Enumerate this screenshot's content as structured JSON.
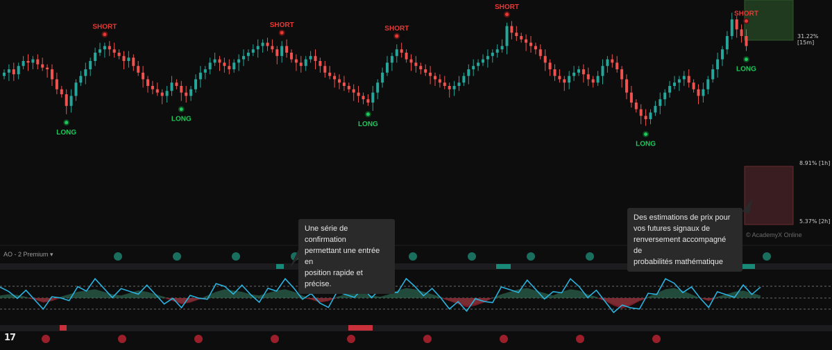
{
  "indicator": {
    "title": "AO - 2 Premium"
  },
  "watermark": "© AcademyX Online",
  "callouts": {
    "confirmation": [
      "Une série de confirmation",
      "permettant une entrée en",
      "position rapide et précise."
    ],
    "estimates": [
      "Des estimations de prix pour",
      "vos futures signaux de",
      "renversement accompagné de",
      "probabilités mathématique"
    ]
  },
  "estimates": [
    {
      "label": "31.22% [15m]",
      "color": "#1f3a1e"
    },
    {
      "label": "8.91% [1h]",
      "color": ""
    },
    {
      "label": "5.37% [2h]",
      "color": "#3a1d20"
    }
  ],
  "colors": {
    "up": "#26a69a",
    "down": "#ef5350",
    "long": "#1ec85a",
    "short": "#e53935",
    "wave": "#2ab3e0",
    "bg": "#0e0d0d"
  },
  "chart_data": {
    "type": "candlestick",
    "signals": [
      {
        "type": "SHORT",
        "candle": 21
      },
      {
        "type": "SHORT",
        "candle": 58
      },
      {
        "type": "SHORT",
        "candle": 82
      },
      {
        "type": "SHORT",
        "candle": 105
      },
      {
        "type": "SHORT",
        "candle": 170
      },
      {
        "type": "LONG",
        "candle": 13
      },
      {
        "type": "LONG",
        "candle": 37
      },
      {
        "type": "LONG",
        "candle": 76
      },
      {
        "type": "LONG",
        "candle": 134
      },
      {
        "type": "LONG",
        "candle": 155
      }
    ],
    "close": [
      48,
      50,
      47,
      52,
      55,
      54,
      56,
      53,
      51,
      50,
      44,
      38,
      35,
      28,
      34,
      42,
      46,
      50,
      55,
      60,
      62,
      64,
      62,
      60,
      58,
      55,
      57,
      52,
      48,
      44,
      40,
      38,
      36,
      34,
      37,
      42,
      40,
      36,
      34,
      38,
      44,
      48,
      50,
      54,
      56,
      54,
      52,
      50,
      54,
      56,
      58,
      60,
      62,
      64,
      66,
      64,
      62,
      58,
      64,
      60,
      56,
      54,
      52,
      56,
      58,
      55,
      52,
      48,
      46,
      44,
      42,
      40,
      38,
      36,
      34,
      32,
      30,
      36,
      42,
      48,
      54,
      58,
      62,
      60,
      56,
      54,
      52,
      50,
      48,
      46,
      44,
      42,
      40,
      38,
      40,
      42,
      46,
      50,
      52,
      54,
      56,
      58,
      60,
      62,
      64,
      76,
      72,
      70,
      68,
      66,
      64,
      62,
      58,
      54,
      50,
      46,
      44,
      42,
      46,
      48,
      50,
      47,
      44,
      42,
      46,
      52,
      56,
      54,
      50,
      44,
      36,
      30,
      26,
      22,
      20,
      24,
      28,
      32,
      36,
      40,
      42,
      44,
      46,
      42,
      38,
      34,
      38,
      44,
      50,
      56,
      62,
      70,
      80,
      74,
      70,
      64
    ],
    "indicator_wave": [
      0.2,
      0.3,
      0.25,
      0.1,
      -0.1,
      -0.3,
      -0.2,
      0.1,
      0.3,
      0.5,
      0.6,
      0.7,
      0.5,
      0.3,
      0.2,
      0.4,
      0.6,
      0.5,
      0.3,
      0.1,
      -0.2,
      -0.4,
      -0.3,
      -0.1,
      0.2,
      0.5,
      0.7,
      0.6,
      0.5,
      0.3,
      0.2,
      0.4,
      0.6,
      0.7,
      0.5,
      0.2,
      -0.1,
      -0.3,
      -0.2,
      0.1,
      0.3,
      0.5,
      0.4,
      0.2,
      0.1,
      0.3,
      0.6,
      0.8,
      0.7,
      0.5,
      0.3,
      0.1,
      -0.2,
      -0.4,
      -0.6,
      -0.5,
      -0.3,
      0.0,
      0.3,
      0.5,
      0.7,
      0.8,
      0.6,
      0.4,
      0.2,
      0.5,
      0.7,
      0.6,
      0.3,
      0.1,
      -0.2,
      -0.5,
      -0.7,
      -0.5,
      -0.2,
      0.1,
      0.4,
      0.7,
      0.8,
      0.6,
      0.3,
      0.0,
      -0.2,
      0.1,
      0.3,
      0.5,
      0.6,
      0.4,
      0.2
    ],
    "confirmation_top": [
      "#1a6e5e",
      "#1a6e5e",
      "#1a6e5e",
      "#1a6e5e",
      "#1a6e5e",
      "#1a6e5e",
      "#1a6e5e",
      "#1a6e5e",
      "#1a6e5e",
      "#1a6e5e",
      "#1a6e5e",
      "#1a6e5e"
    ],
    "confirmation_bottom": [
      "#9a1f2a",
      "#9a1f2a",
      "#9a1f2a",
      "#9a1f2a",
      "#9a1f2a",
      "#9a1f2a",
      "#9a1f2a",
      "#9a1f2a",
      "#9a1f2a"
    ]
  }
}
